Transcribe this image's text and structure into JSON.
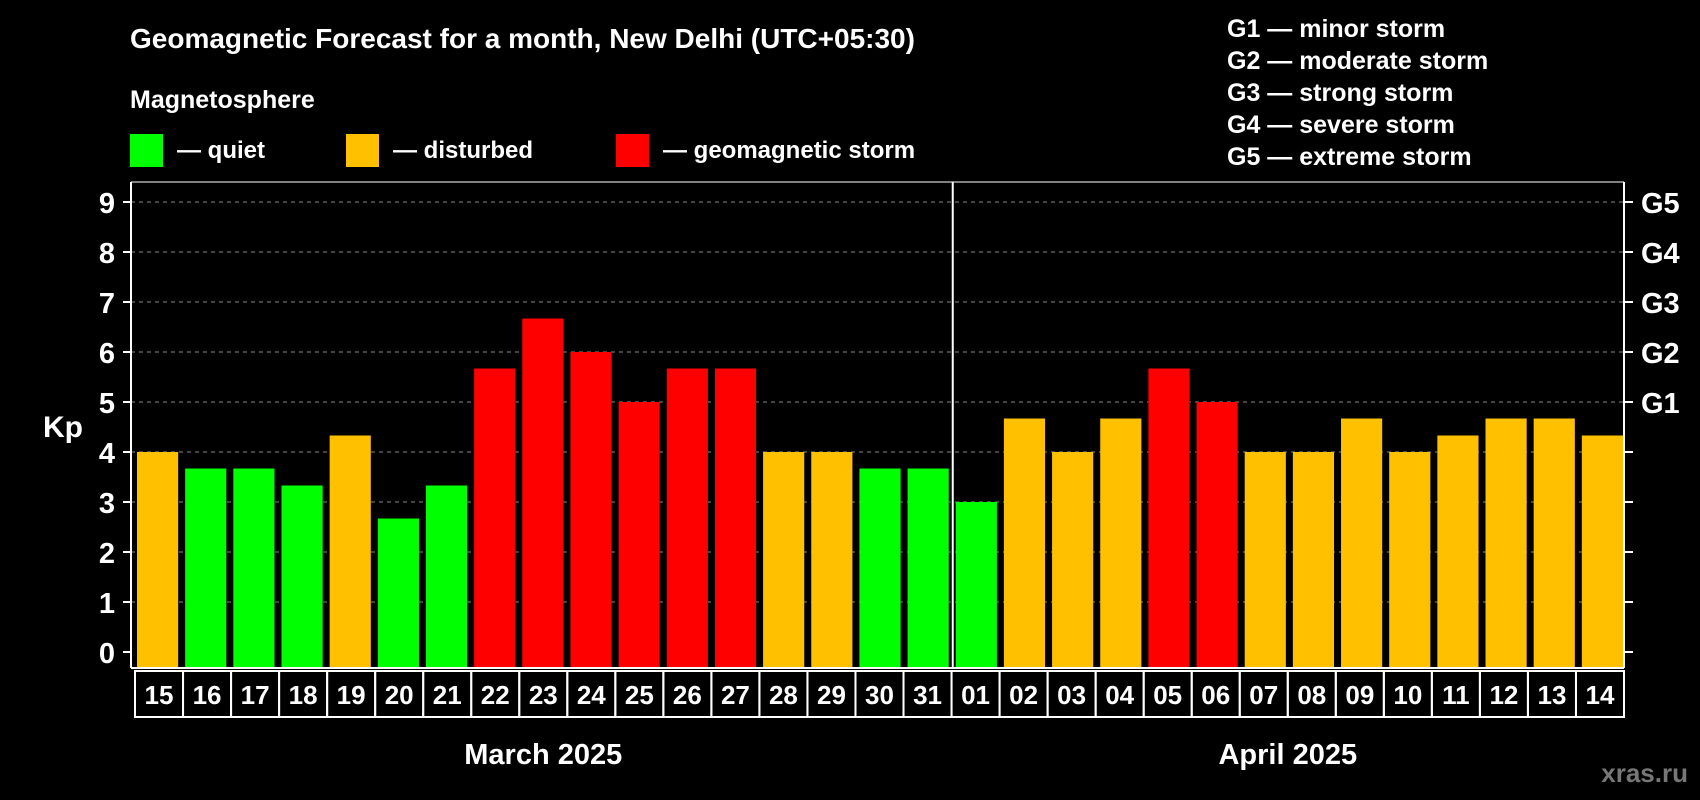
{
  "title": "Geomagnetic Forecast for a month, New Delhi (UTC+05:30)",
  "legend": {
    "heading": "Magnetosphere",
    "items": [
      {
        "label": "— quiet",
        "color": "#00ff00"
      },
      {
        "label": "— disturbed",
        "color": "#ffc000"
      },
      {
        "label": "— geomagnetic storm",
        "color": "#ff0000"
      }
    ]
  },
  "storm_scale": [
    "G1 — minor storm",
    "G2 — moderate storm",
    "G3 — strong storm",
    "G4 — severe storm",
    "G5 — extreme storm"
  ],
  "watermark": "xras.ru",
  "colors": {
    "quiet": "#00ff00",
    "disturbed": "#ffc000",
    "storm": "#ff0000",
    "background": "#000000"
  },
  "chart_data": {
    "type": "bar",
    "ylabel": "Kp",
    "ylim": [
      0,
      9
    ],
    "yticks": [
      "0",
      "1",
      "2",
      "3",
      "4",
      "5",
      "6",
      "7",
      "8",
      "9"
    ],
    "right_ticks": [
      {
        "value": 5,
        "label": "G1"
      },
      {
        "value": 6,
        "label": "G2"
      },
      {
        "value": 7,
        "label": "G3"
      },
      {
        "value": 8,
        "label": "G4"
      },
      {
        "value": 9,
        "label": "G5"
      }
    ],
    "grid": true,
    "months": [
      "March 2025",
      "April 2025"
    ],
    "categories": [
      "15",
      "16",
      "17",
      "18",
      "19",
      "20",
      "21",
      "22",
      "23",
      "24",
      "25",
      "26",
      "27",
      "28",
      "29",
      "30",
      "31",
      "01",
      "02",
      "03",
      "04",
      "05",
      "06",
      "07",
      "08",
      "09",
      "10",
      "11",
      "12",
      "13",
      "14"
    ],
    "values": [
      4.0,
      3.67,
      3.67,
      3.33,
      4.33,
      2.67,
      3.33,
      5.67,
      6.67,
      6.0,
      5.0,
      5.67,
      5.67,
      4.0,
      4.0,
      3.67,
      3.67,
      3.0,
      4.67,
      4.0,
      4.67,
      5.67,
      5.0,
      4.0,
      4.0,
      4.67,
      4.0,
      4.33,
      4.67,
      4.67,
      4.33
    ],
    "levels": [
      "disturbed",
      "quiet",
      "quiet",
      "quiet",
      "disturbed",
      "quiet",
      "quiet",
      "storm",
      "storm",
      "storm",
      "storm",
      "storm",
      "storm",
      "disturbed",
      "disturbed",
      "quiet",
      "quiet",
      "quiet",
      "disturbed",
      "disturbed",
      "disturbed",
      "storm",
      "storm",
      "disturbed",
      "disturbed",
      "disturbed",
      "disturbed",
      "disturbed",
      "disturbed",
      "disturbed",
      "disturbed"
    ]
  }
}
